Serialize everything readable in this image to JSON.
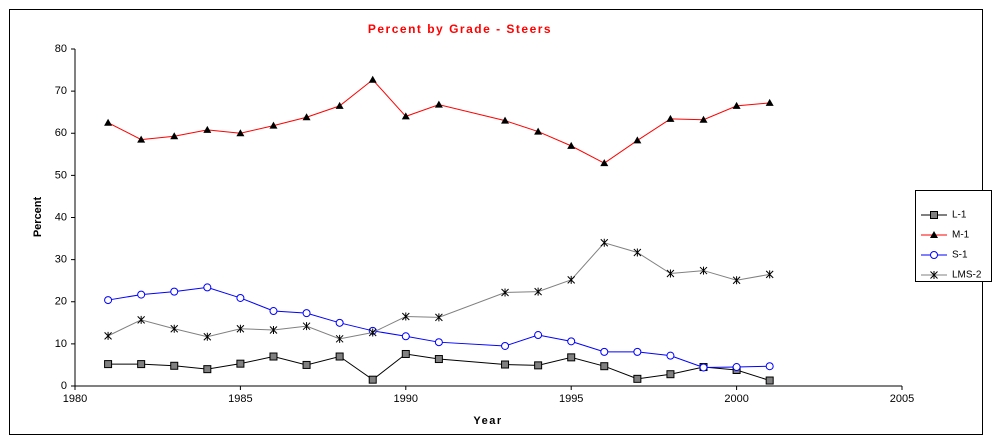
{
  "chart_data": {
    "type": "line",
    "title": "Percent by Grade - Steers",
    "x_label": "Year",
    "y_label": "Percent",
    "xlim": [
      1980,
      2005
    ],
    "xticks": [
      1980,
      1985,
      1990,
      1995,
      2000,
      2005
    ],
    "ylim": [
      0,
      80
    ],
    "yticks": [
      0,
      10,
      20,
      30,
      40,
      50,
      60,
      70,
      80
    ],
    "grid": false,
    "legend": "right",
    "x": [
      1981,
      1982,
      1983,
      1984,
      1985,
      1986,
      1987,
      1988,
      1989,
      1990,
      1991,
      1993,
      1994,
      1995,
      1996,
      1997,
      1998,
      1999,
      2000,
      2001
    ],
    "series": [
      {
        "name": "L-1",
        "color": "#000000",
        "marker": "square",
        "values": [
          5.2,
          5.2,
          4.8,
          4.0,
          5.3,
          7.0,
          5.0,
          7.0,
          1.5,
          7.6,
          6.4,
          5.1,
          4.9,
          6.8,
          4.7,
          1.7,
          2.8,
          4.5,
          3.8,
          1.3
        ]
      },
      {
        "name": "M-1",
        "color": "#ff0000",
        "marker": "triangle",
        "values": [
          62.5,
          58.5,
          59.3,
          60.8,
          60.0,
          61.8,
          63.8,
          66.5,
          72.7,
          64.0,
          66.8,
          63.0,
          60.4,
          57.0,
          52.9,
          58.3,
          63.4,
          63.2,
          66.5,
          67.2
        ]
      },
      {
        "name": "S-1",
        "color": "#0000ff",
        "marker": "circle",
        "values": [
          20.4,
          21.7,
          22.4,
          23.4,
          20.9,
          17.8,
          17.3,
          15.0,
          13.1,
          11.8,
          10.4,
          9.5,
          12.1,
          10.6,
          8.1,
          8.1,
          7.2,
          4.4,
          4.5,
          4.7
        ]
      },
      {
        "name": "LMS-2",
        "color": "#808080",
        "marker": "star",
        "values": [
          11.9,
          15.7,
          13.6,
          11.7,
          13.6,
          13.3,
          14.2,
          11.2,
          12.7,
          16.5,
          16.3,
          22.2,
          22.4,
          25.2,
          34.0,
          31.7,
          26.7,
          27.4,
          25.1,
          26.5
        ]
      }
    ]
  }
}
